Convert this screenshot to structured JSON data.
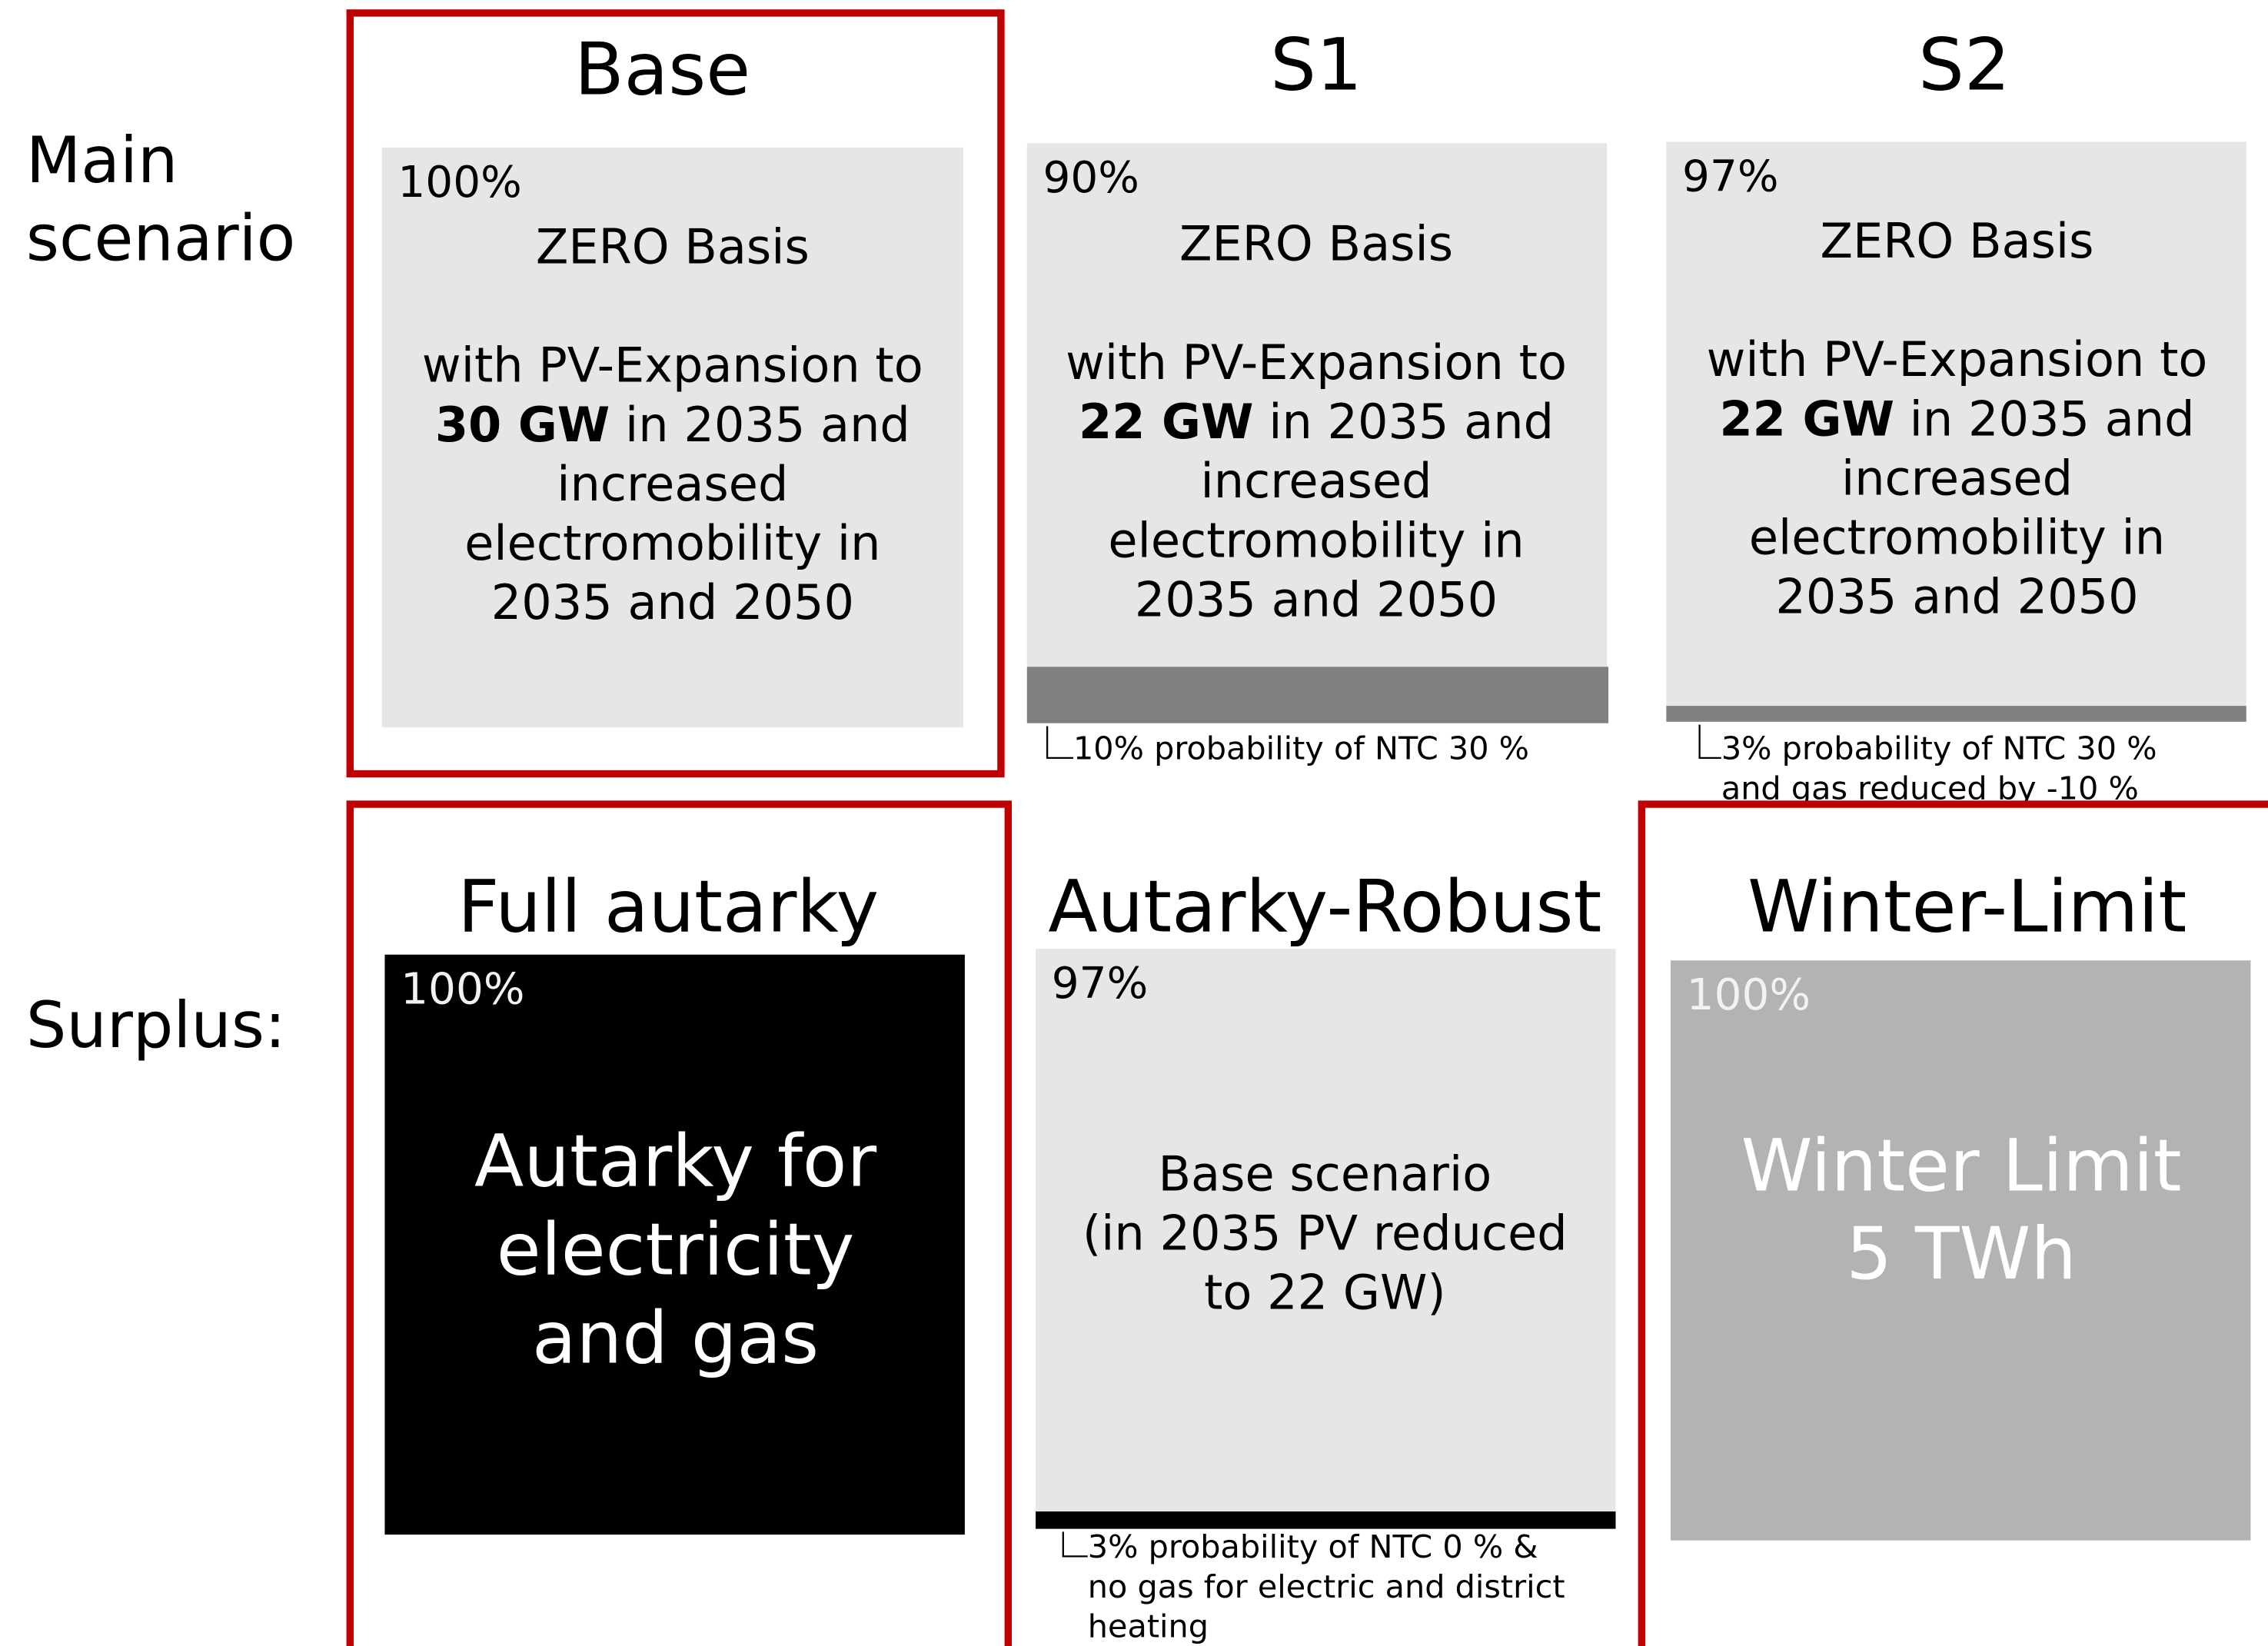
{
  "row_labels": {
    "main": [
      "Main",
      "scenario"
    ],
    "surplus": "Surplus:"
  },
  "scenarios": [
    {
      "title": "Base",
      "percent": "100%",
      "highlighted": true,
      "card_color": "#e6e6e6",
      "text_color": "#000000",
      "bar_color": null,
      "body": [
        [
          {
            "text": "ZERO Basis"
          }
        ],
        [],
        [
          {
            "text": "with PV-Expansion to"
          }
        ],
        [
          {
            "text": "30 GW",
            "bold": true
          },
          {
            "text": " in 2035 and"
          }
        ],
        [
          {
            "text": "increased"
          }
        ],
        [
          {
            "text": "electromobility in"
          }
        ],
        [
          {
            "text": "2035 and 2050"
          }
        ]
      ],
      "note": []
    },
    {
      "title": "S1",
      "percent": "90%",
      "highlighted": false,
      "card_color": "#e6e6e6",
      "text_color": "#000000",
      "bar_color": "#808080",
      "body": [
        [
          {
            "text": "ZERO Basis"
          }
        ],
        [],
        [
          {
            "text": "with PV-Expansion to"
          }
        ],
        [
          {
            "text": "22 GW",
            "bold": true
          },
          {
            "text": " in 2035 and"
          }
        ],
        [
          {
            "text": "increased"
          }
        ],
        [
          {
            "text": "electromobility in"
          }
        ],
        [
          {
            "text": "2035 and 2050"
          }
        ]
      ],
      "note": [
        "10% probability of NTC 30 %"
      ]
    },
    {
      "title": "S2",
      "percent": "97%",
      "highlighted": false,
      "card_color": "#e6e6e6",
      "text_color": "#000000",
      "bar_color": "#808080",
      "body": [
        [
          {
            "text": "ZERO Basis"
          }
        ],
        [],
        [
          {
            "text": "with PV-Expansion to"
          }
        ],
        [
          {
            "text": "22 GW",
            "bold": true
          },
          {
            "text": " in 2035 and"
          }
        ],
        [
          {
            "text": "increased"
          }
        ],
        [
          {
            "text": "electromobility in"
          }
        ],
        [
          {
            "text": "2035 and 2050"
          }
        ]
      ],
      "note": [
        "3% probability of NTC 30 %",
        "and gas reduced by -10 %"
      ]
    },
    {
      "title": "Full autarky",
      "percent": "100%",
      "highlighted": true,
      "card_color": "#000000",
      "text_color": "#ffffff",
      "bar_color": null,
      "body": [
        [
          {
            "text": "Autarky for"
          }
        ],
        [
          {
            "text": "electricity"
          }
        ],
        [
          {
            "text": "and gas"
          }
        ]
      ],
      "note": []
    },
    {
      "title": "Autarky-Robust",
      "percent": "97%",
      "highlighted": false,
      "card_color": "#e6e6e6",
      "text_color": "#000000",
      "bar_color": "#000000",
      "body": [
        [
          {
            "text": "Base scenario"
          }
        ],
        [
          {
            "text": "(in 2035 PV reduced"
          }
        ],
        [
          {
            "text": "to 22 GW)"
          }
        ]
      ],
      "note": [
        "3% probability of NTC 0 % &",
        "no gas for electric and district",
        "heating"
      ]
    },
    {
      "title": "Winter-Limit",
      "percent": "100%",
      "highlighted": true,
      "card_color": "#b3b3b3",
      "text_color": "#ffffff",
      "bar_color": null,
      "body": [
        [
          {
            "text": "Winter Limit"
          }
        ],
        [
          {
            "text": "5 TWh"
          }
        ]
      ],
      "note": []
    }
  ]
}
